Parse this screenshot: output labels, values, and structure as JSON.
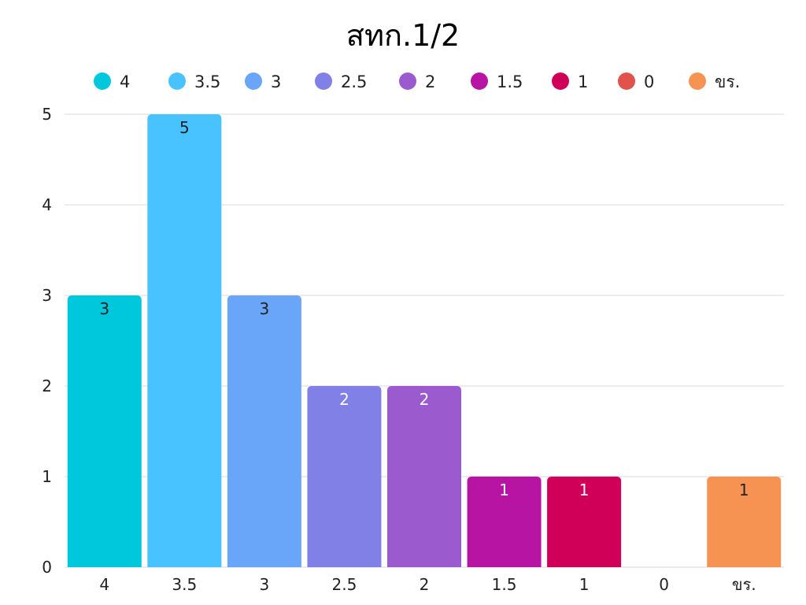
{
  "chart_data": {
    "type": "bar",
    "title": "สทก.1/2",
    "categories": [
      "4",
      "3.5",
      "3",
      "2.5",
      "2",
      "1.5",
      "1",
      "0",
      "ขร."
    ],
    "values": [
      3,
      5,
      3,
      2,
      2,
      1,
      1,
      0,
      1
    ],
    "colors": [
      "#00c8dc",
      "#48c3ff",
      "#69a5f8",
      "#8080e6",
      "#9b5bcf",
      "#b814a3",
      "#d00058",
      "#e0524a",
      "#f79352"
    ],
    "legend": [
      "4",
      "3.5",
      "3",
      "2.5",
      "2",
      "1.5",
      "1",
      "0",
      "ขร."
    ],
    "legend_position": "top",
    "ylim": [
      0,
      5
    ],
    "yticks": [
      0,
      1,
      2,
      3,
      4,
      5
    ],
    "xlabel": "",
    "ylabel": "",
    "grid": true,
    "data_label_colors": [
      "#222222",
      "#222222",
      "#222222",
      "#ffffff",
      "#ffffff",
      "#ffffff",
      "#ffffff",
      "#ffffff",
      "#222222"
    ]
  }
}
